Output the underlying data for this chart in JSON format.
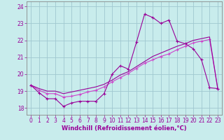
{
  "bg_color": "#c8ecec",
  "grid_color": "#a0c8d0",
  "line_color1": "#990099",
  "line_color2": "#cc44cc",
  "xlim": [
    -0.5,
    23.5
  ],
  "ylim": [
    17.6,
    24.3
  ],
  "yticks": [
    18,
    19,
    20,
    21,
    22,
    23,
    24
  ],
  "xticks": [
    0,
    1,
    2,
    3,
    4,
    5,
    6,
    7,
    8,
    9,
    10,
    11,
    12,
    13,
    14,
    15,
    16,
    17,
    18,
    19,
    20,
    21,
    22,
    23
  ],
  "xlabel": "Windchill (Refroidissement éolien,°C)",
  "series1_x": [
    0,
    1,
    2,
    3,
    4,
    5,
    6,
    7,
    8,
    9,
    10,
    11,
    12,
    13,
    14,
    15,
    16,
    17,
    18,
    19,
    20,
    21,
    22,
    23
  ],
  "series1_y": [
    19.35,
    18.9,
    18.55,
    18.55,
    18.1,
    18.3,
    18.4,
    18.4,
    18.4,
    18.85,
    20.0,
    20.5,
    20.3,
    21.9,
    23.55,
    23.35,
    23.0,
    23.2,
    21.95,
    21.8,
    21.5,
    20.85,
    19.2,
    19.15
  ],
  "series2_x": [
    0,
    1,
    2,
    3,
    4,
    5,
    6,
    7,
    8,
    9,
    10,
    11,
    12,
    13,
    14,
    15,
    16,
    17,
    18,
    19,
    20,
    21,
    22,
    23
  ],
  "series2_y": [
    19.35,
    19.05,
    18.85,
    18.85,
    18.65,
    18.7,
    18.8,
    18.95,
    19.05,
    19.25,
    19.55,
    19.8,
    20.05,
    20.35,
    20.65,
    20.85,
    21.05,
    21.2,
    21.45,
    21.65,
    21.85,
    21.95,
    22.05,
    19.15
  ],
  "series3_x": [
    0,
    1,
    2,
    3,
    4,
    5,
    6,
    7,
    8,
    9,
    10,
    11,
    12,
    13,
    14,
    15,
    16,
    17,
    18,
    19,
    20,
    21,
    22,
    23
  ],
  "series3_y": [
    19.35,
    19.15,
    19.0,
    19.0,
    18.85,
    18.95,
    19.05,
    19.15,
    19.25,
    19.4,
    19.65,
    19.95,
    20.15,
    20.45,
    20.75,
    21.05,
    21.25,
    21.45,
    21.65,
    21.8,
    22.0,
    22.1,
    22.2,
    19.15
  ],
  "tick_fontsize": 5.5,
  "xlabel_fontsize": 6.0,
  "spine_color": "#888888",
  "marker": "+"
}
